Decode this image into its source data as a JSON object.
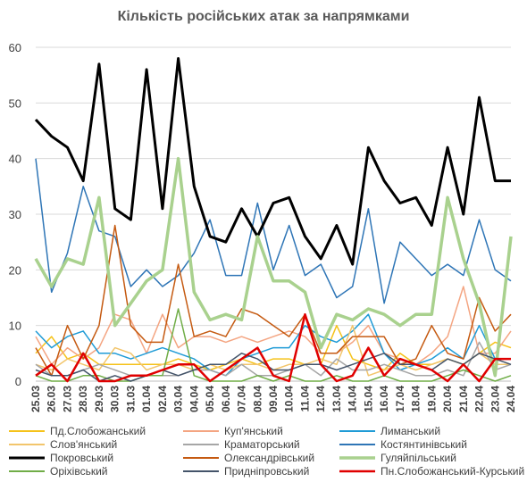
{
  "chart_data": {
    "type": "line",
    "title": "Кількість російських атак за напрямками",
    "xlabel": "",
    "ylabel": "",
    "ylim": [
      0,
      60
    ],
    "yticks": [
      0,
      10,
      20,
      30,
      40,
      50,
      60
    ],
    "grid": true,
    "legend_position": "bottom",
    "categories": [
      "25.03",
      "26.03",
      "27.03",
      "28.03",
      "29.03",
      "30.03",
      "31.03",
      "01.04",
      "02.04",
      "03.04",
      "04.04",
      "05.04",
      "06.04",
      "07.04",
      "08.04",
      "09.04",
      "10.04",
      "11.04",
      "12.04",
      "13.04",
      "14.04",
      "15.04",
      "16.04",
      "17.04",
      "18.04",
      "19.04",
      "20.04",
      "21.04",
      "22.04",
      "23.04",
      "24.04"
    ],
    "series": [
      {
        "name": "Пд.Слобожанський",
        "color": "#f5c21a",
        "width": 1.5,
        "values": [
          5,
          8,
          4,
          5,
          3,
          3,
          3,
          3,
          3,
          4,
          3,
          2,
          3,
          4,
          3,
          4,
          4,
          3,
          3,
          10,
          4,
          3,
          2,
          5,
          3,
          3,
          4,
          3,
          5,
          7,
          6
        ]
      },
      {
        "name": "Куп'янський",
        "color": "#f4a582",
        "width": 1.5,
        "values": [
          8,
          3,
          6,
          4,
          6,
          12,
          11,
          5,
          12,
          6,
          8,
          8,
          7,
          8,
          7,
          8,
          9,
          8,
          5,
          5,
          7,
          10,
          5,
          4,
          3,
          5,
          8,
          17,
          5,
          5,
          9
        ]
      },
      {
        "name": "Лиманський",
        "color": "#1f9bd6",
        "width": 1.5,
        "values": [
          9,
          6,
          8,
          9,
          5,
          5,
          4,
          5,
          6,
          5,
          4,
          2,
          1,
          4,
          5,
          6,
          6,
          10,
          8,
          7,
          9,
          12,
          5,
          2,
          3,
          4,
          6,
          4,
          10,
          4,
          4
        ]
      },
      {
        "name": "Слов'янський",
        "color": "#f2c56c",
        "width": 1.5,
        "values": [
          3,
          2,
          4,
          3,
          2,
          6,
          5,
          2,
          3,
          3,
          2,
          3,
          2,
          3,
          3,
          2,
          3,
          3,
          4,
          3,
          10,
          1,
          2,
          3,
          2,
          3,
          4,
          3,
          5,
          3,
          3
        ]
      },
      {
        "name": "Краматорський",
        "color": "#a6a6a6",
        "width": 1.5,
        "values": [
          3,
          1,
          1,
          2,
          3,
          2,
          1,
          1,
          1,
          1,
          2,
          2,
          1,
          3,
          1,
          1,
          2,
          3,
          1,
          4,
          2,
          2,
          3,
          2,
          1,
          1,
          2,
          1,
          7,
          2,
          3
        ]
      },
      {
        "name": "Костянтинівський",
        "color": "#2e75b6",
        "width": 1.5,
        "values": [
          40,
          16,
          23,
          35,
          27,
          26,
          17,
          20,
          17,
          19,
          23,
          29,
          19,
          19,
          32,
          20,
          28,
          19,
          21,
          15,
          17,
          31,
          14,
          25,
          22,
          19,
          21,
          19,
          29,
          20,
          18
        ]
      },
      {
        "name": "Покровський",
        "color": "#000000",
        "width": 3,
        "values": [
          47,
          44,
          42,
          36,
          57,
          31,
          29,
          56,
          31,
          58,
          35,
          26,
          25,
          31,
          26,
          32,
          33,
          26,
          22,
          28,
          21,
          42,
          36,
          32,
          33,
          28,
          42,
          30,
          51,
          36,
          36
        ]
      },
      {
        "name": "Олександрівський",
        "color": "#c55a11",
        "width": 1.5,
        "values": [
          6,
          1,
          10,
          4,
          10,
          28,
          10,
          7,
          7,
          21,
          8,
          9,
          8,
          13,
          12,
          10,
          8,
          12,
          5,
          5,
          8,
          8,
          8,
          3,
          4,
          10,
          5,
          4,
          15,
          9,
          12
        ]
      },
      {
        "name": "Гуляйпільський",
        "color": "#a9d18e",
        "width": 3.5,
        "values": [
          22,
          17,
          22,
          21,
          33,
          10,
          14,
          18,
          20,
          40,
          16,
          11,
          12,
          11,
          26,
          18,
          18,
          16,
          6,
          12,
          11,
          13,
          12,
          10,
          12,
          12,
          33,
          22,
          14,
          1,
          26
        ]
      },
      {
        "name": "Оріхівський",
        "color": "#70ad47",
        "width": 1.5,
        "values": [
          1,
          0,
          0,
          1,
          1,
          0,
          0,
          1,
          1,
          13,
          1,
          0,
          0,
          0,
          1,
          0,
          1,
          0,
          0,
          1,
          0,
          0,
          1,
          0,
          0,
          0,
          1,
          2,
          1,
          0,
          1
        ]
      },
      {
        "name": "Придніпровський",
        "color": "#44546a",
        "width": 1.5,
        "values": [
          2,
          1,
          1,
          2,
          0,
          1,
          0,
          1,
          2,
          1,
          2,
          3,
          3,
          5,
          4,
          2,
          2,
          3,
          3,
          2,
          3,
          4,
          5,
          3,
          3,
          2,
          4,
          3,
          5,
          4,
          3
        ]
      },
      {
        "name": "Пн.Слобожанський-Курський",
        "color": "#e00000",
        "width": 2.5,
        "values": [
          1,
          3,
          0,
          5,
          0,
          0,
          1,
          1,
          2,
          3,
          3,
          0,
          2,
          4,
          6,
          1,
          0,
          12,
          3,
          0,
          1,
          6,
          1,
          4,
          3,
          2,
          0,
          3,
          0,
          4,
          4
        ]
      }
    ]
  }
}
